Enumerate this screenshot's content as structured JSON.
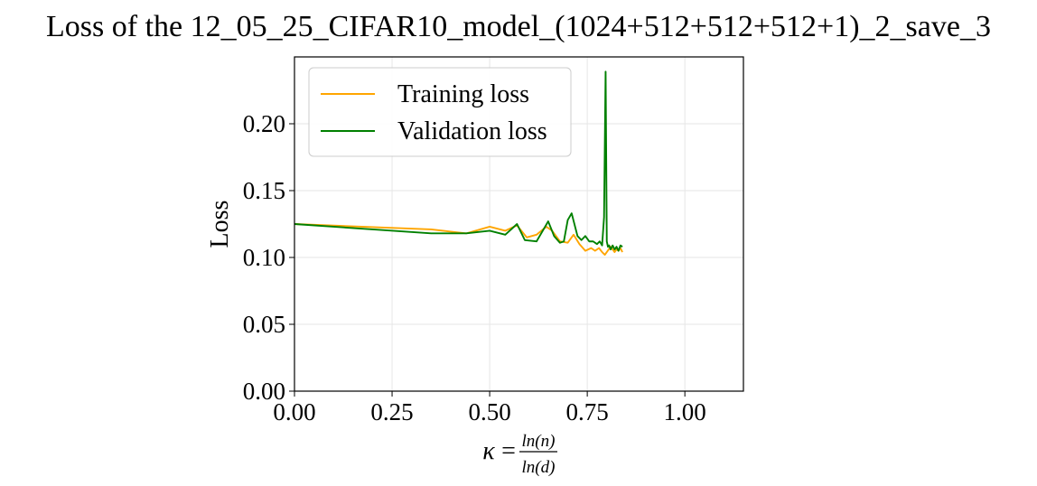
{
  "chart_data": {
    "type": "line",
    "title": "Loss of the 12_05_25_CIFAR10_model_(1024+512+512+512+1)_2_save_3",
    "ylabel": "Loss",
    "xlabel": {
      "prefix": "κ",
      "equals": "=",
      "numerator": "ln(n)",
      "denominator": "ln(d)"
    },
    "xlim": [
      0.0,
      1.15
    ],
    "ylim": [
      0.0,
      0.25
    ],
    "xticks": [
      {
        "value": 0.0,
        "label": "0.00"
      },
      {
        "value": 0.25,
        "label": "0.25"
      },
      {
        "value": 0.5,
        "label": "0.50"
      },
      {
        "value": 0.75,
        "label": "0.75"
      },
      {
        "value": 1.0,
        "label": "1.00"
      }
    ],
    "yticks": [
      {
        "value": 0.0,
        "label": "0.00"
      },
      {
        "value": 0.05,
        "label": "0.05"
      },
      {
        "value": 0.1,
        "label": "0.10"
      },
      {
        "value": 0.15,
        "label": "0.15"
      },
      {
        "value": 0.2,
        "label": "0.20"
      }
    ],
    "grid": true,
    "legend_position": "top-left",
    "series": [
      {
        "name": "Training loss",
        "color": "#FFA500",
        "x": [
          0.0,
          0.35,
          0.44,
          0.5,
          0.54,
          0.57,
          0.595,
          0.62,
          0.645,
          0.66,
          0.68,
          0.7,
          0.715,
          0.73,
          0.745,
          0.76,
          0.77,
          0.78,
          0.788,
          0.795,
          0.8,
          0.805,
          0.81,
          0.815,
          0.82,
          0.825,
          0.83,
          0.835,
          0.84
        ],
        "y": [
          0.125,
          0.121,
          0.118,
          0.123,
          0.12,
          0.124,
          0.115,
          0.117,
          0.123,
          0.12,
          0.112,
          0.111,
          0.117,
          0.11,
          0.105,
          0.107,
          0.105,
          0.107,
          0.104,
          0.102,
          0.104,
          0.106,
          0.108,
          0.106,
          0.104,
          0.106,
          0.105,
          0.107,
          0.104
        ]
      },
      {
        "name": "Validation loss",
        "color": "#008000",
        "x": [
          0.0,
          0.35,
          0.44,
          0.5,
          0.54,
          0.57,
          0.59,
          0.62,
          0.65,
          0.665,
          0.68,
          0.69,
          0.7,
          0.71,
          0.725,
          0.735,
          0.745,
          0.755,
          0.765,
          0.775,
          0.782,
          0.788,
          0.793,
          0.797,
          0.8,
          0.803,
          0.806,
          0.81,
          0.815,
          0.82,
          0.825,
          0.83,
          0.835,
          0.84
        ],
        "y": [
          0.125,
          0.118,
          0.118,
          0.12,
          0.117,
          0.125,
          0.113,
          0.112,
          0.127,
          0.116,
          0.111,
          0.112,
          0.128,
          0.133,
          0.116,
          0.113,
          0.116,
          0.112,
          0.112,
          0.11,
          0.112,
          0.109,
          0.13,
          0.239,
          0.112,
          0.108,
          0.109,
          0.106,
          0.109,
          0.106,
          0.108,
          0.105,
          0.109,
          0.108
        ]
      }
    ]
  }
}
